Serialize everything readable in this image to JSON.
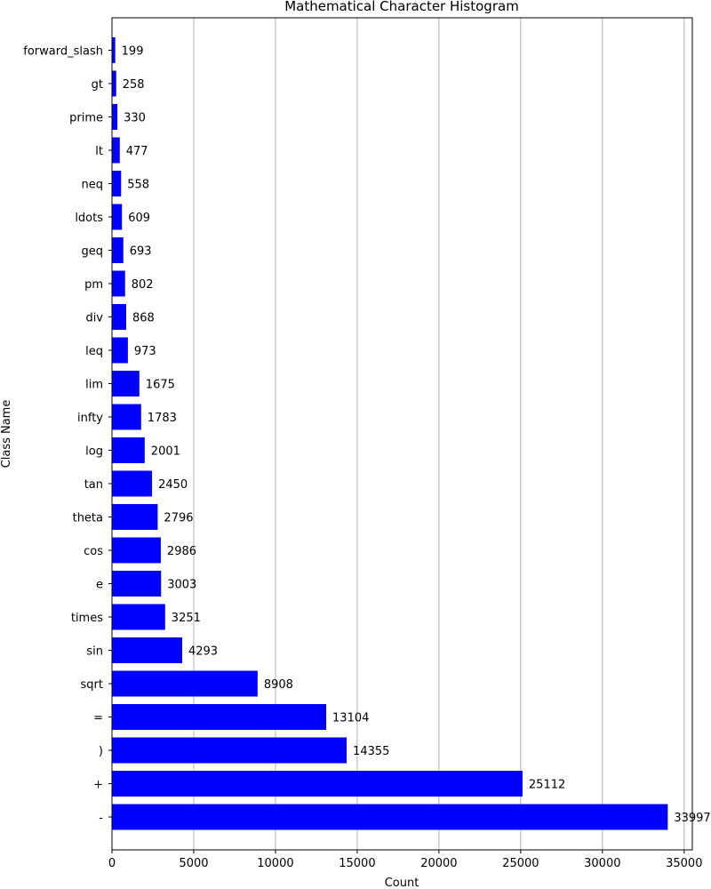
{
  "chart_data": {
    "type": "bar",
    "orientation": "horizontal",
    "title": "Mathematical Character Histogram",
    "xlabel": "Count",
    "ylabel": "Class Name",
    "xlim": [
      0,
      35500
    ],
    "xticks": [
      0,
      5000,
      10000,
      15000,
      20000,
      25000,
      30000,
      35000
    ],
    "grid": "vertical",
    "bar_color": "#0000ff",
    "categories": [
      "-",
      "+",
      ")",
      "=",
      "sqrt",
      "sin",
      "times",
      "e",
      "cos",
      "theta",
      "tan",
      "log",
      "infty",
      "lim",
      "leq",
      "div",
      "pm",
      "geq",
      "ldots",
      "neq",
      "lt",
      "prime",
      "gt",
      "forward_slash"
    ],
    "values": [
      33997,
      25112,
      14355,
      13104,
      8908,
      4293,
      3251,
      3003,
      2986,
      2796,
      2450,
      2001,
      1783,
      1675,
      973,
      868,
      802,
      693,
      609,
      558,
      477,
      330,
      258,
      199
    ]
  }
}
